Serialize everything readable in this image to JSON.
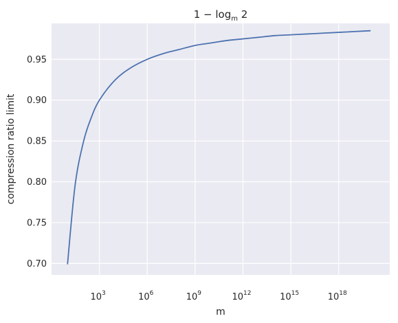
{
  "chart_data": {
    "type": "line",
    "title": "1 − log",
    "title_subscript": "m",
    "title_suffix": " 2",
    "xlabel": "m",
    "ylabel": "compression ratio limit",
    "xscale": "log",
    "x_range_log10": [
      0.0,
      21.2
    ],
    "xlim": [
      1,
      1.6e+21
    ],
    "ylim": [
      0.686,
      0.994
    ],
    "x_ticks": [
      {
        "exp": 3,
        "base": "10",
        "sup": "3"
      },
      {
        "exp": 6,
        "base": "10",
        "sup": "6"
      },
      {
        "exp": 9,
        "base": "10",
        "sup": "9"
      },
      {
        "exp": 12,
        "base": "10",
        "sup": "12"
      },
      {
        "exp": 15,
        "base": "10",
        "sup": "15"
      },
      {
        "exp": 18,
        "base": "10",
        "sup": "18"
      }
    ],
    "y_ticks": [
      {
        "value": 0.7,
        "label": "0.70"
      },
      {
        "value": 0.75,
        "label": "0.75"
      },
      {
        "value": 0.8,
        "label": "0.80"
      },
      {
        "value": 0.85,
        "label": "0.85"
      },
      {
        "value": 0.9,
        "label": "0.90"
      },
      {
        "value": 0.95,
        "label": "0.95"
      }
    ],
    "series": [
      {
        "x": [
          10,
          30,
          100,
          300,
          1000,
          10000,
          100000,
          1000000,
          10000000,
          100000000,
          1000000000,
          10000000000.0,
          100000000000.0,
          1000000000000.0,
          10000000000000.0,
          100000000000000.0,
          1000000000000000.0,
          1e+16,
          1e+17,
          1e+18,
          1e+19,
          1e+20
        ],
        "y": [
          0.699,
          0.796,
          0.849,
          0.878,
          0.9,
          0.925,
          0.94,
          0.95,
          0.957,
          0.962,
          0.967,
          0.97,
          0.973,
          0.975,
          0.977,
          0.979,
          0.98,
          0.981,
          0.982,
          0.983,
          0.984,
          0.985
        ]
      }
    ],
    "colors": {
      "line": "#4c72b0",
      "plot_bg": "#eaeaf2",
      "grid": "#ffffff"
    },
    "grid": true,
    "legend": "none"
  }
}
